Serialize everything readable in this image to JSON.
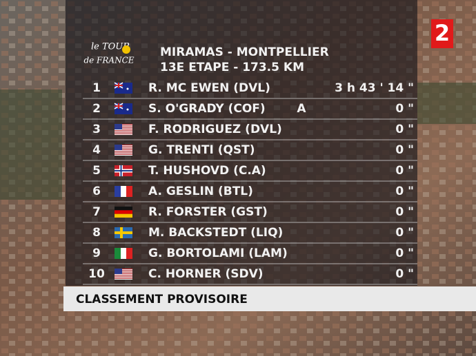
{
  "channel": "2",
  "logo": {
    "line1": "le TOUR",
    "line2": "de FRANCE"
  },
  "header": {
    "title": "MIRAMAS - MONTPELLIER",
    "subtitle": "13E ETAPE - 173.5 KM"
  },
  "table": {
    "rows": [
      {
        "rank": 1,
        "rider": "R. MC EWEN (DVL)",
        "time": "3 h 43 ' 14 \""
      },
      {
        "rank": 2,
        "rider": "S. O'GRADY (COF)",
        "note": "A",
        "time": "0 \""
      },
      {
        "rank": 3,
        "rider": "F. RODRIGUEZ (DVL)",
        "time": "0 \""
      },
      {
        "rank": 4,
        "rider": "G. TRENTI (QST)",
        "time": "0 \""
      },
      {
        "rank": 5,
        "rider": "T. HUSHOVD (C.A)",
        "time": "0 \""
      },
      {
        "rank": 6,
        "rider": "A. GESLIN (BTL)",
        "time": "0 \""
      },
      {
        "rank": 7,
        "rider": "R. FORSTER (GST)",
        "time": "0 \""
      },
      {
        "rank": 8,
        "rider": "M. BACKSTEDT (LIQ)",
        "time": "0 \""
      },
      {
        "rank": 9,
        "rider": "G. BORTOLAMI (LAM)",
        "time": "0 \""
      },
      {
        "rank": 10,
        "rider": "C. HORNER (SDV)",
        "time": "0 \""
      }
    ]
  },
  "footer": "CLASSEMENT PROVISOIRE"
}
